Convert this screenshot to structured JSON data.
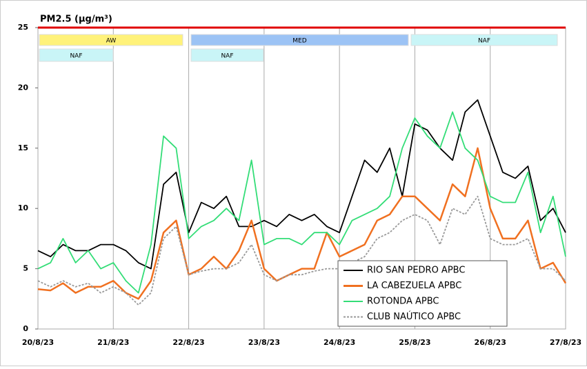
{
  "chart_data": {
    "type": "line",
    "title": "PM2.5 (µg/m³)",
    "categories": [
      "20/8/23",
      null,
      null,
      null,
      null,
      null,
      "21/8/23",
      null,
      null,
      null,
      null,
      null,
      "22/8/23",
      null,
      null,
      null,
      null,
      null,
      "23/8/23",
      null,
      null,
      null,
      null,
      null,
      "24/8/23",
      null,
      null,
      null,
      null,
      null,
      "25/8/23",
      null,
      null,
      null,
      null,
      null,
      "26/8/23",
      null,
      null,
      null,
      null,
      null,
      "27/8/23"
    ],
    "series": [
      {
        "name": "RIO SAN PEDRO APBC",
        "color": "#000000",
        "values": [
          6.5,
          6,
          7,
          6.5,
          6.5,
          7,
          7,
          6.5,
          5.5,
          5,
          12,
          13,
          8,
          10.5,
          10,
          11,
          8.5,
          8.5,
          9,
          8.5,
          9.5,
          9,
          9.5,
          8.5,
          8,
          11,
          14,
          13,
          15,
          11,
          17,
          16.5,
          15,
          14,
          18,
          19,
          16,
          13,
          12.5,
          13.5,
          9,
          10,
          8
        ]
      },
      {
        "name": "LA CABEZUELA  APBC",
        "color": "#f07020",
        "values": [
          3.3,
          3.2,
          3.8,
          3,
          3.5,
          3.5,
          4,
          3,
          2.5,
          4,
          8,
          9,
          4.5,
          5,
          6,
          5,
          6.5,
          9,
          5,
          4,
          4.5,
          5,
          5,
          8,
          6,
          6.5,
          7,
          9,
          9.5,
          11,
          11,
          10,
          9,
          12,
          11,
          15,
          10,
          7.5,
          7.5,
          9,
          5,
          5.5,
          3.8
        ]
      },
      {
        "name": "ROTONDA  APBC",
        "color": "#33dd77",
        "values": [
          5,
          5.5,
          7.5,
          5.5,
          6.5,
          5,
          5.5,
          4,
          3,
          7,
          16,
          15,
          7.5,
          8.5,
          9,
          10,
          9,
          14,
          7,
          7.5,
          7.5,
          7,
          8,
          8,
          7,
          9,
          9.5,
          10,
          11,
          15,
          17.5,
          16,
          15,
          18,
          15,
          14,
          11,
          10.5,
          10.5,
          13,
          8,
          11,
          6
        ]
      },
      {
        "name": "CLUB NAÚTICO  APBC",
        "color": "#999999",
        "dashed": true,
        "values": [
          4,
          3.5,
          4,
          3.5,
          3.8,
          3,
          3.5,
          3,
          2,
          3,
          7.5,
          8.5,
          4.5,
          4.8,
          5,
          5,
          5.5,
          7,
          4.5,
          4,
          4.5,
          4.5,
          4.8,
          5,
          5,
          5.5,
          6,
          7.5,
          8,
          9,
          9.5,
          9,
          7,
          10,
          9.5,
          11,
          7.5,
          7,
          7,
          7.5,
          5,
          5,
          4
        ]
      }
    ],
    "ylim": [
      0,
      25
    ],
    "yticks": [
      0,
      5,
      10,
      15,
      20,
      25
    ],
    "reference_line": {
      "value": 25,
      "color": "#e00000"
    },
    "annotations": [
      {
        "text": "AW",
        "color": "#fff27a"
      },
      {
        "text": "MED",
        "color": "#9cc3f5"
      },
      {
        "text": "NAF",
        "color": "#c9f5f7"
      },
      {
        "text": "NAF",
        "color": "#c9f5f7"
      },
      {
        "text": "NAF",
        "color": "#c9f5f7"
      }
    ],
    "grid": true,
    "legend": "lower right"
  }
}
